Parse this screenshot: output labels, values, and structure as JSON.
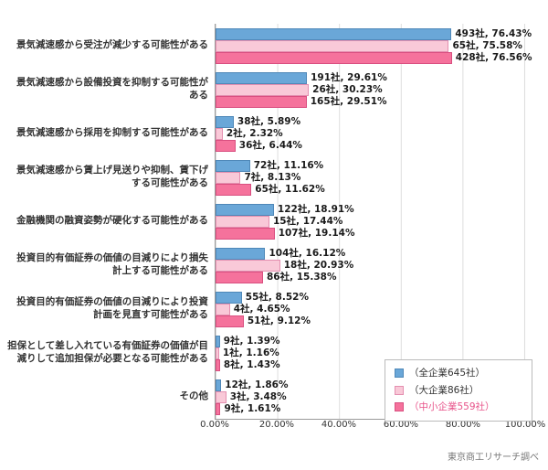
{
  "chart_data": {
    "type": "bar",
    "orientation": "horizontal",
    "unit_suffix": "社",
    "categories": [
      "景気減速感から受注が減少する可能性がある",
      "景気減速感から設備投資を抑制する可能性がある",
      "景気減速感から採用を抑制する可能性がある",
      "景気減速感から賃上げ見送りや抑制、賃下げする可能性がある",
      "金融機関の融資姿勢が硬化する可能性がある",
      "投資目的有価証券の価値の目減りにより損失計上する可能性がある",
      "投資目的有価証券の価値の目減りにより投資計画を見直す可能性がある",
      "担保として差し入れている有価証券の価値が目減りして追加担保が必要となる可能性がある",
      "その他"
    ],
    "series": [
      {
        "key": "all-companies",
        "name": "（全企業645社）",
        "fill": "#6aa7d8",
        "border": "#4f88b8",
        "legend_text_color": "#333333",
        "counts": [
          493,
          191,
          38,
          72,
          122,
          104,
          55,
          9,
          12
        ],
        "values": [
          76.43,
          29.61,
          5.89,
          11.16,
          18.91,
          16.12,
          8.52,
          1.39,
          1.86
        ]
      },
      {
        "key": "large-companies",
        "name": "（大企業86社）",
        "fill": "#f9c9d8",
        "border": "#e48fb0",
        "legend_text_color": "#333333",
        "counts": [
          65,
          26,
          2,
          7,
          15,
          18,
          4,
          1,
          3
        ],
        "values": [
          75.58,
          30.23,
          2.32,
          8.13,
          17.44,
          20.93,
          4.65,
          1.16,
          3.48
        ]
      },
      {
        "key": "small-medium-companies",
        "name": "（中小企業559社）",
        "fill": "#f5729c",
        "border": "#d94f80",
        "legend_text_color": "#e8538a",
        "counts": [
          428,
          165,
          36,
          65,
          107,
          86,
          51,
          8,
          9
        ],
        "values": [
          76.56,
          29.51,
          6.44,
          11.62,
          19.14,
          15.38,
          9.12,
          1.43,
          1.61
        ]
      }
    ],
    "x_ticks": [
      "0.00%",
      "20.00%",
      "40.00%",
      "60.00%",
      "80.00%",
      "100.00%"
    ],
    "xlim": [
      0,
      100
    ],
    "grid": true,
    "legend_position": "bottom-right",
    "source": "東京商工リサーチ調べ"
  }
}
